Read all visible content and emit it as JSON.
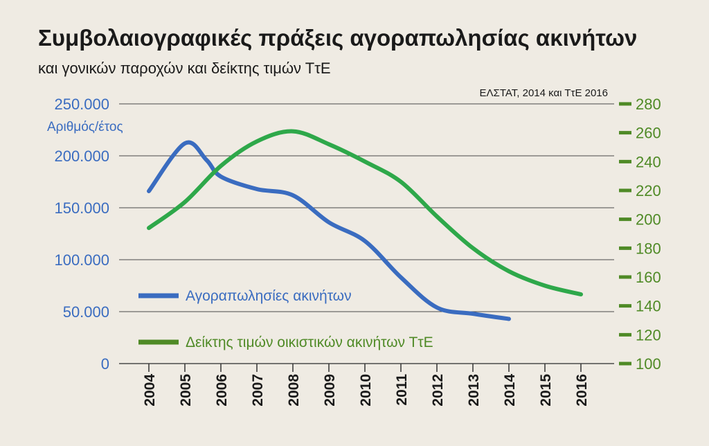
{
  "chart_data": {
    "type": "line",
    "title": "Συμβολαιογραφικές πράξεις αγοραπωλησίας ακινήτων",
    "subtitle": "και γονικών παροχών και δείκτης τιμών ΤτΕ",
    "source": "ΕΛΣΤΑΤ, 2014 και ΤτΕ 2016",
    "ylabel_left": "Αριθμός/έτος",
    "x": [
      "2004",
      "2005",
      "2006",
      "2007",
      "2008",
      "2009",
      "2010",
      "2011",
      "2012",
      "2013",
      "2014",
      "2015",
      "2016"
    ],
    "y_left": {
      "ticks": [
        "0",
        "50.000",
        "100.000",
        "150.000",
        "200.000",
        "250.000"
      ],
      "tick_values": [
        0,
        50000,
        100000,
        150000,
        200000,
        250000
      ],
      "lim": [
        0,
        250000
      ]
    },
    "y_right": {
      "ticks": [
        "100",
        "120",
        "140",
        "160",
        "180",
        "200",
        "220",
        "240",
        "260",
        "280"
      ],
      "tick_values": [
        100,
        120,
        140,
        160,
        180,
        200,
        220,
        240,
        260,
        280
      ],
      "lim": [
        100,
        280
      ]
    },
    "series": [
      {
        "name": "Αγοραπωλησίες ακινήτων",
        "axis": "left",
        "color": "#3a6cc0",
        "points": [
          [
            2004,
            166000
          ],
          [
            2005,
            212000
          ],
          [
            2005.6,
            196000
          ],
          [
            2006,
            180000
          ],
          [
            2007,
            168000
          ],
          [
            2008,
            162000
          ],
          [
            2009,
            136000
          ],
          [
            2010,
            118000
          ],
          [
            2011,
            83000
          ],
          [
            2012,
            54000
          ],
          [
            2013,
            48000
          ],
          [
            2014,
            43000
          ]
        ]
      },
      {
        "name": "Δείκτης τιμών οικιστικών ακινήτων ΤτΕ",
        "axis": "right",
        "color": "#2ea84a",
        "points": [
          [
            2004,
            194
          ],
          [
            2005,
            212
          ],
          [
            2006,
            237
          ],
          [
            2007,
            254
          ],
          [
            2008,
            261
          ],
          [
            2009,
            252
          ],
          [
            2010,
            240
          ],
          [
            2011,
            226
          ],
          [
            2012,
            202
          ],
          [
            2013,
            180
          ],
          [
            2014,
            164
          ],
          [
            2015,
            154
          ],
          [
            2016,
            148
          ]
        ]
      }
    ],
    "legend_position": "bottom-left",
    "grid": "horizontal"
  }
}
